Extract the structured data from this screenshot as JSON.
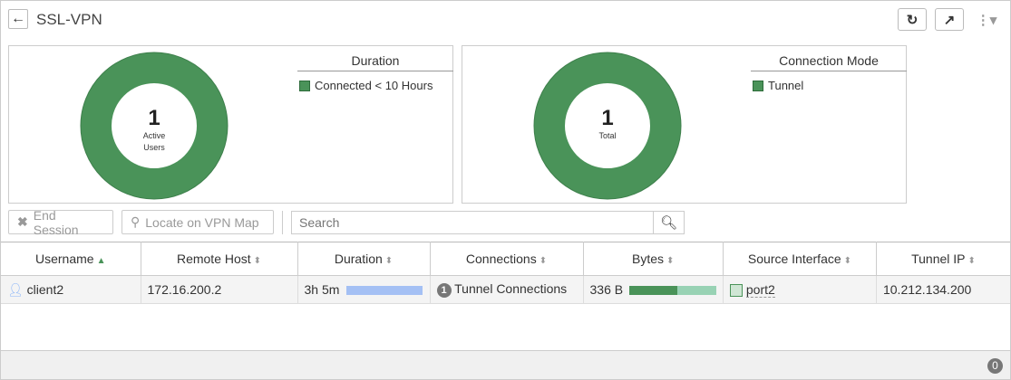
{
  "header": {
    "title": "SSL-VPN"
  },
  "colors": {
    "accent": "#4a9359",
    "duration_bar": "#a4c0f4",
    "bytes_sent": "#4a9359",
    "bytes_recv": "#98d2b4"
  },
  "panels": [
    {
      "center_value": "1",
      "center_label_1": "Active",
      "center_label_2": "Users",
      "legend_title": "Duration",
      "legend_items": [
        "Connected < 10 Hours"
      ]
    },
    {
      "center_value": "1",
      "center_label_1": "Total",
      "center_label_2": "",
      "legend_title": "Connection Mode",
      "legend_items": [
        "Tunnel"
      ]
    }
  ],
  "toolbar": {
    "end_session": "End Session",
    "locate": "Locate on VPN Map",
    "search_placeholder": "Search"
  },
  "table": {
    "columns": [
      "Username",
      "Remote Host",
      "Duration",
      "Connections",
      "Bytes",
      "Source Interface",
      "Tunnel IP"
    ],
    "rows": [
      {
        "username": "client2",
        "remote_host": "172.16.200.2",
        "duration": "3h 5m",
        "connections_count": "1",
        "connections": "Tunnel Connections",
        "bytes": "336 B",
        "bytes_sent_fraction": 0.55,
        "source_interface": "port2",
        "tunnel_ip": "10.212.134.200"
      }
    ]
  },
  "footer": {
    "count": "0"
  }
}
